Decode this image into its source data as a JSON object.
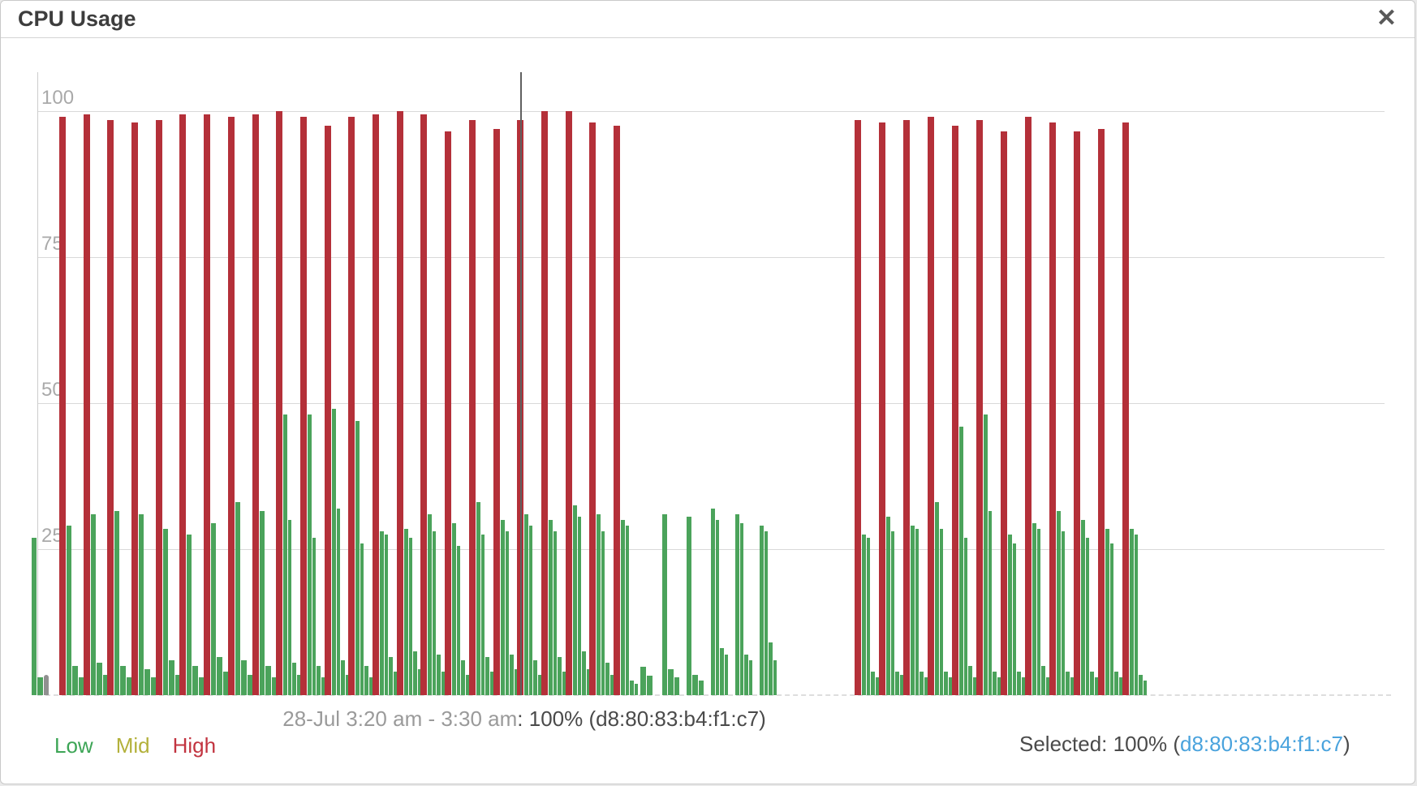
{
  "window": {
    "title": "CPU Usage",
    "close_glyph": "✕"
  },
  "colors": {
    "low": "#3da556",
    "mid": "#b3b13b",
    "high": "#c23440",
    "bar_green": "#4ba35b",
    "bar_red": "#b43039",
    "bar_gray": "#909090",
    "grid": "#d9d9d9",
    "axis_label": "#a9a9a9",
    "caption_light": "#9a9a9a",
    "caption_dark": "#4a4a4a",
    "mac_blue": "#4aa3dd",
    "crosshair": "#606060"
  },
  "legend": {
    "items": [
      {
        "label": "Low",
        "color_key": "low"
      },
      {
        "label": "Mid",
        "color_key": "mid"
      },
      {
        "label": "High",
        "color_key": "high"
      }
    ]
  },
  "caption": {
    "range": "28-Jul 3:20 am - 3:30 am",
    "value": ": 100% (d8:80:83:b4:f1:c7)"
  },
  "selected": {
    "prefix": "Selected: 100% (",
    "mac": "d8:80:83:b4:f1:c7",
    "suffix": ")"
  },
  "chart_data": {
    "type": "bar",
    "title": "CPU Usage",
    "ylim": [
      0,
      100
    ],
    "yticks": [
      100,
      75,
      50,
      25
    ],
    "grid": "horizontal",
    "legend_entries": [
      "Low",
      "Mid",
      "High"
    ],
    "crosshair_x": 640,
    "hover_label": "28-Jul 3:20 am - 3:30 am: 100% (d8:80:83:b4:f1:c7)",
    "groups": [
      {
        "x": 38,
        "bars": [
          [
            "g",
            27
          ],
          [
            "g",
            3
          ],
          [
            "y",
            3.5
          ]
        ]
      },
      {
        "x": 72,
        "bars": [
          [
            "r",
            99
          ],
          [
            "g",
            29
          ],
          [
            "g",
            5
          ],
          [
            "g",
            3
          ]
        ]
      },
      {
        "x": 102,
        "bars": [
          [
            "r",
            99.5
          ],
          [
            "g",
            31
          ],
          [
            "g",
            5.5
          ],
          [
            "g",
            3.5
          ]
        ]
      },
      {
        "x": 131,
        "bars": [
          [
            "r",
            98.5
          ],
          [
            "g",
            31.5
          ],
          [
            "g",
            5
          ],
          [
            "g",
            3
          ]
        ]
      },
      {
        "x": 161,
        "bars": [
          [
            "r",
            98
          ],
          [
            "g",
            31
          ],
          [
            "g",
            4.5
          ],
          [
            "g",
            3
          ]
        ]
      },
      {
        "x": 191,
        "bars": [
          [
            "r",
            98.5
          ],
          [
            "g",
            28.5
          ],
          [
            "g",
            6
          ],
          [
            "g",
            3.5
          ]
        ]
      },
      {
        "x": 220,
        "bars": [
          [
            "r",
            99.5
          ],
          [
            "g",
            27.5
          ],
          [
            "g",
            5
          ],
          [
            "g",
            3
          ]
        ]
      },
      {
        "x": 250,
        "bars": [
          [
            "r",
            99.5
          ],
          [
            "g",
            29.5
          ],
          [
            "g",
            6.5
          ],
          [
            "g",
            4
          ]
        ]
      },
      {
        "x": 280,
        "bars": [
          [
            "r",
            99
          ],
          [
            "g",
            33
          ],
          [
            "g",
            6
          ],
          [
            "g",
            3.5
          ]
        ]
      },
      {
        "x": 310,
        "bars": [
          [
            "r",
            99.5
          ],
          [
            "g",
            31.5
          ],
          [
            "g",
            5
          ],
          [
            "g",
            3
          ]
        ]
      },
      {
        "x": 339,
        "bars": [
          [
            "r",
            100
          ],
          [
            "g",
            48
          ],
          [
            "g",
            30
          ],
          [
            "g",
            5.5
          ],
          [
            "g",
            3.5
          ]
        ]
      },
      {
        "x": 369,
        "bars": [
          [
            "r",
            99
          ],
          [
            "g",
            48
          ],
          [
            "g",
            27
          ],
          [
            "g",
            5
          ],
          [
            "g",
            3
          ]
        ]
      },
      {
        "x": 399,
        "bars": [
          [
            "r",
            97.5
          ],
          [
            "g",
            49
          ],
          [
            "g",
            32
          ],
          [
            "g",
            6
          ],
          [
            "g",
            3.5
          ]
        ]
      },
      {
        "x": 428,
        "bars": [
          [
            "r",
            99
          ],
          [
            "g",
            47
          ],
          [
            "g",
            26
          ],
          [
            "g",
            5
          ],
          [
            "g",
            3
          ]
        ]
      },
      {
        "x": 458,
        "bars": [
          [
            "r",
            99.5
          ],
          [
            "g",
            28
          ],
          [
            "g",
            27.5
          ],
          [
            "g",
            6.5
          ],
          [
            "g",
            4
          ]
        ]
      },
      {
        "x": 488,
        "bars": [
          [
            "r",
            100
          ],
          [
            "g",
            28.5
          ],
          [
            "g",
            27
          ],
          [
            "g",
            7.5
          ],
          [
            "g",
            4.5
          ]
        ]
      },
      {
        "x": 517,
        "bars": [
          [
            "r",
            99.5
          ],
          [
            "g",
            31
          ],
          [
            "g",
            28
          ],
          [
            "g",
            7
          ],
          [
            "g",
            4
          ]
        ]
      },
      {
        "x": 547,
        "bars": [
          [
            "r",
            96.5
          ],
          [
            "g",
            29.5
          ],
          [
            "g",
            25.5
          ],
          [
            "g",
            6
          ],
          [
            "g",
            3.5
          ]
        ]
      },
      {
        "x": 577,
        "bars": [
          [
            "r",
            98.5
          ],
          [
            "g",
            33
          ],
          [
            "g",
            27.5
          ],
          [
            "g",
            6.5
          ],
          [
            "g",
            4
          ]
        ]
      },
      {
        "x": 607,
        "bars": [
          [
            "r",
            97
          ],
          [
            "g",
            30
          ],
          [
            "g",
            28
          ],
          [
            "g",
            7
          ],
          [
            "g",
            4.5
          ]
        ]
      },
      {
        "x": 636,
        "bars": [
          [
            "r",
            98.5
          ],
          [
            "g",
            31
          ],
          [
            "g",
            29
          ],
          [
            "g",
            6
          ],
          [
            "g",
            3.5
          ]
        ]
      },
      {
        "x": 666,
        "bars": [
          [
            "r",
            100
          ],
          [
            "g",
            30
          ],
          [
            "g",
            28
          ],
          [
            "g",
            6.5
          ],
          [
            "g",
            4
          ]
        ]
      },
      {
        "x": 696,
        "bars": [
          [
            "r",
            100
          ],
          [
            "g",
            32.5
          ],
          [
            "g",
            30.5
          ],
          [
            "g",
            7.5
          ],
          [
            "g",
            4.5
          ]
        ]
      },
      {
        "x": 725,
        "bars": [
          [
            "r",
            98
          ],
          [
            "g",
            31
          ],
          [
            "g",
            28
          ],
          [
            "g",
            5.5
          ],
          [
            "g",
            3.5
          ]
        ]
      },
      {
        "x": 755,
        "bars": [
          [
            "r",
            97.5
          ],
          [
            "g",
            30
          ],
          [
            "g",
            29
          ],
          [
            "g",
            2.5
          ],
          [
            "g",
            2
          ]
        ]
      },
      {
        "x": 788,
        "bars": [
          [
            "g",
            4.8
          ],
          [
            "g",
            3.3
          ]
        ]
      },
      {
        "x": 815,
        "bars": [
          [
            "g",
            31
          ],
          [
            "g",
            4.5
          ],
          [
            "g",
            3
          ]
        ]
      },
      {
        "x": 845,
        "bars": [
          [
            "g",
            30.5
          ],
          [
            "g",
            3.5
          ],
          [
            "g",
            2.5
          ]
        ]
      },
      {
        "x": 875,
        "bars": [
          [
            "g",
            32
          ],
          [
            "g",
            30
          ],
          [
            "g",
            8
          ],
          [
            "g",
            7
          ]
        ]
      },
      {
        "x": 905,
        "bars": [
          [
            "g",
            31
          ],
          [
            "g",
            29.5
          ],
          [
            "g",
            7
          ],
          [
            "g",
            6
          ]
        ]
      },
      {
        "x": 935,
        "bars": [
          [
            "g",
            29
          ],
          [
            "g",
            28
          ],
          [
            "g",
            9
          ],
          [
            "g",
            6
          ]
        ]
      },
      {
        "x": 1052,
        "bars": [
          [
            "r",
            98.5
          ],
          [
            "g",
            27.5
          ],
          [
            "g",
            27
          ],
          [
            "g",
            4
          ],
          [
            "g",
            3
          ]
        ]
      },
      {
        "x": 1082,
        "bars": [
          [
            "r",
            98
          ],
          [
            "g",
            30.5
          ],
          [
            "g",
            28
          ],
          [
            "g",
            4
          ],
          [
            "g",
            3.5
          ]
        ]
      },
      {
        "x": 1112,
        "bars": [
          [
            "r",
            98.5
          ],
          [
            "g",
            29
          ],
          [
            "g",
            28.5
          ],
          [
            "g",
            4
          ],
          [
            "g",
            3
          ]
        ]
      },
      {
        "x": 1142,
        "bars": [
          [
            "r",
            99
          ],
          [
            "g",
            33
          ],
          [
            "g",
            28.5
          ],
          [
            "g",
            4
          ],
          [
            "g",
            3
          ]
        ]
      },
      {
        "x": 1172,
        "bars": [
          [
            "r",
            97.5
          ],
          [
            "g",
            46
          ],
          [
            "g",
            27
          ],
          [
            "g",
            5
          ],
          [
            "g",
            3
          ]
        ]
      },
      {
        "x": 1202,
        "bars": [
          [
            "r",
            98.5
          ],
          [
            "g",
            48
          ],
          [
            "g",
            31.5
          ],
          [
            "g",
            4
          ],
          [
            "g",
            3
          ]
        ]
      },
      {
        "x": 1232,
        "bars": [
          [
            "r",
            96.5
          ],
          [
            "g",
            27.5
          ],
          [
            "g",
            26
          ],
          [
            "g",
            4
          ],
          [
            "g",
            3
          ]
        ]
      },
      {
        "x": 1262,
        "bars": [
          [
            "r",
            99
          ],
          [
            "g",
            29.5
          ],
          [
            "g",
            28.5
          ],
          [
            "g",
            5
          ],
          [
            "g",
            3
          ]
        ]
      },
      {
        "x": 1292,
        "bars": [
          [
            "r",
            98
          ],
          [
            "g",
            31.5
          ],
          [
            "g",
            28
          ],
          [
            "g",
            4
          ],
          [
            "g",
            3
          ]
        ]
      },
      {
        "x": 1322,
        "bars": [
          [
            "r",
            96.5
          ],
          [
            "g",
            30
          ],
          [
            "g",
            27
          ],
          [
            "g",
            4
          ],
          [
            "g",
            3
          ]
        ]
      },
      {
        "x": 1352,
        "bars": [
          [
            "r",
            97
          ],
          [
            "g",
            28.5
          ],
          [
            "g",
            26
          ],
          [
            "g",
            4
          ],
          [
            "g",
            3
          ]
        ]
      },
      {
        "x": 1382,
        "bars": [
          [
            "r",
            98
          ],
          [
            "g",
            28.5
          ],
          [
            "g",
            27.5
          ],
          [
            "g",
            3.5
          ],
          [
            "g",
            2.5
          ]
        ]
      }
    ]
  }
}
